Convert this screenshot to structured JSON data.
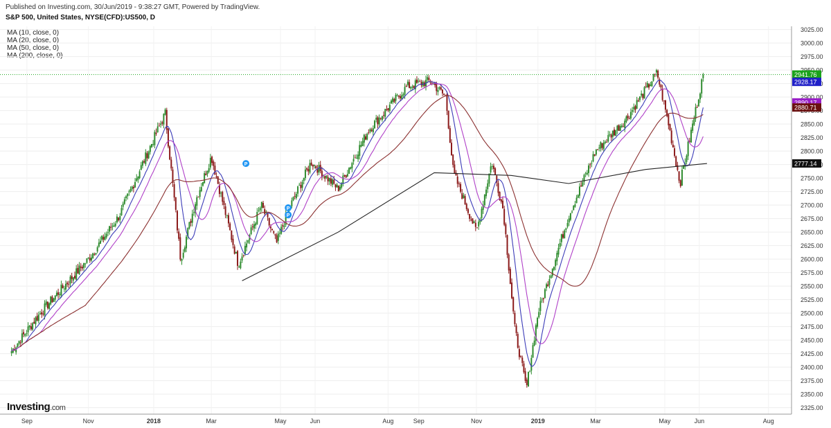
{
  "header": {
    "published": "Published on Investing.com, 30/Jun/2019 - 9:38:27 GMT, Powered by TradingView.",
    "symbol": "S&P 500, United States, NYSE(CFD):US500, D"
  },
  "indicators": [
    "MA (10, close, 0)",
    "MA (20, close, 0)",
    "MA (50, close, 0)",
    "MA (200, close, 0)"
  ],
  "logo": {
    "name": "Investing",
    "suffix": ".com"
  },
  "colors": {
    "up": "#2e8b2e",
    "down": "#8b1a1a",
    "ma10": "#3b3bb8",
    "ma20": "#b040c8",
    "ma50": "#8b3030",
    "ma200": "#222222",
    "price_line": "#1aa31a",
    "event_marker": "#2196f3"
  },
  "chart_data": {
    "type": "candlestick",
    "title": "S&P 500, United States, NYSE(CFD):US500, D",
    "x_axis_labels": [
      "Sep",
      "Nov",
      "2018",
      "Mar",
      "May",
      "Jun",
      "Aug",
      "Sep",
      "Nov",
      "2019",
      "Mar",
      "May",
      "Jun",
      "Aug"
    ],
    "y_ticks": [
      2325,
      2350,
      2375,
      2400,
      2425,
      2450,
      2475,
      2500,
      2525,
      2550,
      2575,
      2600,
      2625,
      2650,
      2675,
      2700,
      2725,
      2750,
      2775,
      2800,
      2825,
      2850,
      2875,
      2900,
      2925,
      2950,
      2975,
      3000,
      3025
    ],
    "ylim": [
      2313,
      3031
    ],
    "grid": true,
    "current_price": 2941.76,
    "price_labels": [
      {
        "value": 2941.76,
        "color": "#1aa31a"
      },
      {
        "value": 2928.17,
        "color": "#2020c8"
      },
      {
        "value": 2890.17,
        "color": "#9a20c8"
      },
      {
        "value": 2880.71,
        "color": "#6a1010"
      },
      {
        "value": 2777.14,
        "color": "#111111"
      }
    ],
    "close_path": [
      [
        2017.65,
        2430
      ],
      [
        2017.73,
        2505
      ],
      [
        2017.85,
        2600
      ],
      [
        2017.93,
        2680
      ],
      [
        2018.05,
        2870
      ],
      [
        2018.09,
        2600
      ],
      [
        2018.13,
        2710
      ],
      [
        2018.17,
        2790
      ],
      [
        2018.24,
        2590
      ],
      [
        2018.3,
        2700
      ],
      [
        2018.34,
        2630
      ],
      [
        2018.37,
        2690
      ],
      [
        2018.43,
        2780
      ],
      [
        2018.5,
        2730
      ],
      [
        2018.58,
        2840
      ],
      [
        2018.68,
        2920
      ],
      [
        2018.74,
        2930
      ],
      [
        2018.78,
        2900
      ],
      [
        2018.8,
        2760
      ],
      [
        2018.86,
        2650
      ],
      [
        2018.9,
        2780
      ],
      [
        2018.93,
        2690
      ],
      [
        2018.96,
        2470
      ],
      [
        2018.99,
        2360
      ],
      [
        2019.02,
        2500
      ],
      [
        2019.1,
        2680
      ],
      [
        2019.17,
        2800
      ],
      [
        2019.25,
        2860
      ],
      [
        2019.33,
        2945
      ],
      [
        2019.36,
        2850
      ],
      [
        2019.39,
        2740
      ],
      [
        2019.42,
        2840
      ],
      [
        2019.45,
        2941.76
      ]
    ],
    "ma200_path": [
      [
        2018.25,
        2560
      ],
      [
        2018.5,
        2650
      ],
      [
        2018.75,
        2760
      ],
      [
        2018.95,
        2755
      ],
      [
        2019.1,
        2740
      ],
      [
        2019.3,
        2766
      ],
      [
        2019.46,
        2777
      ]
    ],
    "event_markers": [
      {
        "x": 2018.26,
        "y": 2777,
        "label": "P"
      },
      {
        "x": 2018.37,
        "y": 2695,
        "label": "P"
      },
      {
        "x": 2018.37,
        "y": 2682,
        "label": "P"
      }
    ]
  }
}
